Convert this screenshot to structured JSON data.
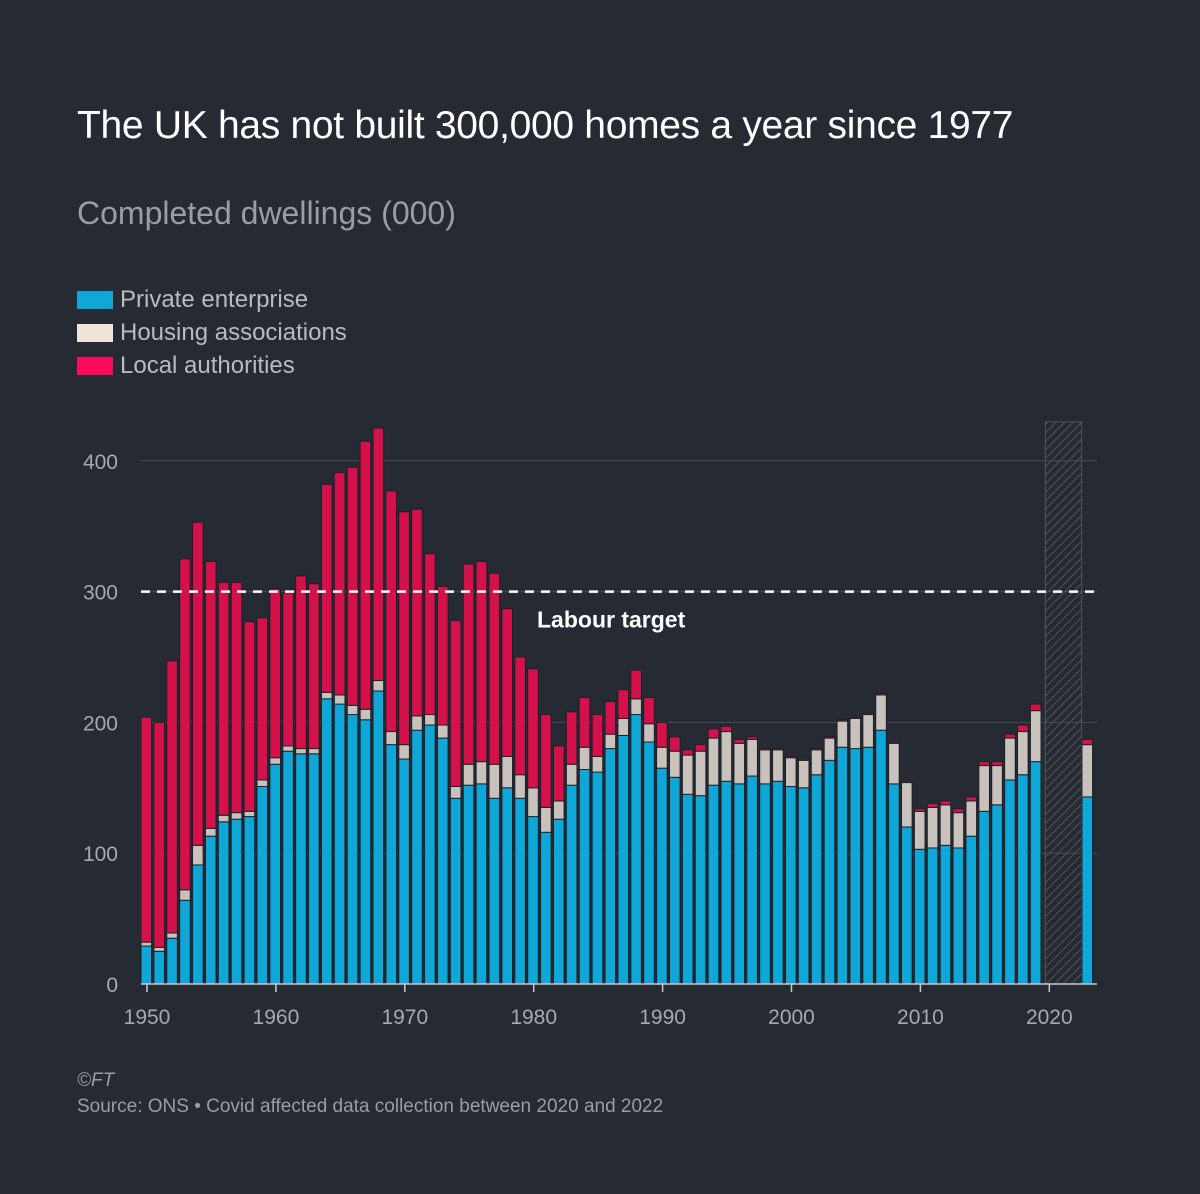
{
  "title": "The UK has not built 300,000 homes a year since 1977",
  "subtitle": "Completed dwellings (000)",
  "legend": [
    {
      "label": "Private enterprise",
      "color": "#0ea7d8"
    },
    {
      "label": "Housing associations",
      "color": "#c9c2bc"
    },
    {
      "label": "Local authorities",
      "color": "#d5114b"
    }
  ],
  "footer": {
    "copyright": "©FT",
    "source": "Source: ONS • Covid affected data collection between 2020 and 2022"
  },
  "chart_data": {
    "type": "bar",
    "stacked": true,
    "ylim": [
      0,
      430
    ],
    "yticks": [
      0,
      100,
      200,
      300,
      400
    ],
    "xticks": [
      1950,
      1960,
      1970,
      1980,
      1990,
      2000,
      2010,
      2020
    ],
    "annotation": {
      "label": "Labour target",
      "value": 300
    },
    "shaded_period": [
      2020,
      2022
    ],
    "grid": true,
    "x": [
      1950,
      1951,
      1952,
      1953,
      1954,
      1955,
      1956,
      1957,
      1958,
      1959,
      1960,
      1961,
      1962,
      1963,
      1964,
      1965,
      1966,
      1967,
      1968,
      1969,
      1970,
      1971,
      1972,
      1973,
      1974,
      1975,
      1976,
      1977,
      1978,
      1979,
      1980,
      1981,
      1982,
      1983,
      1984,
      1985,
      1986,
      1987,
      1988,
      1989,
      1990,
      1991,
      1992,
      1993,
      1994,
      1995,
      1996,
      1997,
      1998,
      1999,
      2000,
      2001,
      2002,
      2003,
      2004,
      2005,
      2006,
      2007,
      2008,
      2009,
      2010,
      2011,
      2012,
      2013,
      2014,
      2015,
      2016,
      2017,
      2018,
      2019,
      2023
    ],
    "series": [
      {
        "name": "Private enterprise",
        "color": "#0ea7d8",
        "values": [
          29,
          25,
          35,
          64,
          91,
          113,
          124,
          126,
          128,
          151,
          168,
          178,
          176,
          176,
          218,
          214,
          206,
          202,
          224,
          183,
          172,
          194,
          198,
          188,
          142,
          152,
          153,
          142,
          150,
          142,
          128,
          116,
          126,
          152,
          164,
          162,
          180,
          190,
          206,
          185,
          165,
          158,
          145,
          144,
          152,
          155,
          153,
          159,
          153,
          155,
          151,
          150,
          160,
          171,
          181,
          180,
          181,
          194,
          153,
          120,
          103,
          104,
          106,
          104,
          113,
          132,
          137,
          156,
          160,
          170,
          143
        ]
      },
      {
        "name": "Housing associations",
        "color": "#c9c2bc",
        "values": [
          3,
          3,
          4,
          8,
          15,
          6,
          5,
          5,
          4,
          5,
          5,
          4,
          4,
          4,
          5,
          7,
          7,
          8,
          8,
          10,
          11,
          11,
          8,
          10,
          9,
          16,
          17,
          26,
          24,
          18,
          22,
          19,
          14,
          16,
          17,
          12,
          11,
          13,
          12,
          14,
          16,
          20,
          30,
          34,
          36,
          38,
          31,
          28,
          26,
          24,
          22,
          21,
          19,
          17,
          20,
          23,
          25,
          27,
          31,
          34,
          29,
          31,
          31,
          27,
          27,
          35,
          30,
          32,
          33,
          39,
          40
        ]
      },
      {
        "name": "Local authorities",
        "color": "#d5114b",
        "values": [
          172,
          172,
          208,
          253,
          247,
          204,
          178,
          176,
          145,
          124,
          129,
          117,
          132,
          126,
          159,
          170,
          182,
          205,
          193,
          184,
          178,
          158,
          123,
          106,
          127,
          153,
          153,
          146,
          113,
          90,
          91,
          71,
          42,
          40,
          38,
          32,
          25,
          22,
          22,
          20,
          19,
          11,
          4,
          5,
          7,
          4,
          3,
          2,
          1,
          1,
          1,
          1,
          1,
          1,
          1,
          1,
          1,
          1,
          1,
          1,
          2,
          3,
          3,
          3,
          3,
          3,
          3,
          3,
          5,
          5,
          4
        ]
      }
    ]
  }
}
